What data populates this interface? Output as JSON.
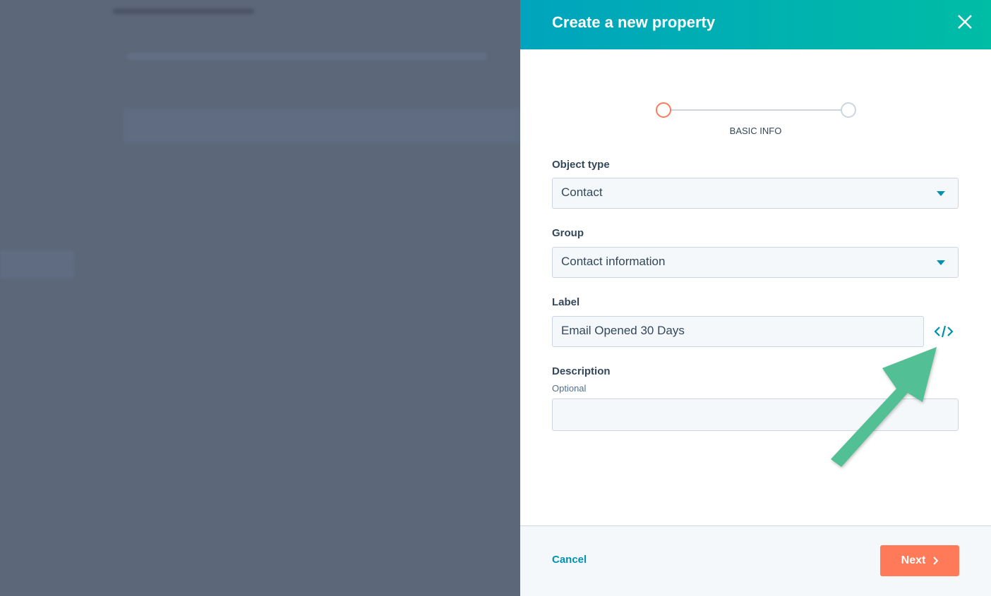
{
  "modal": {
    "title": "Create a new property",
    "step_label": "BASIC INFO",
    "fields": {
      "object_type": {
        "label": "Object type",
        "value": "Contact"
      },
      "group": {
        "label": "Group",
        "value": "Contact information"
      },
      "label": {
        "label": "Label",
        "value": "Email Opened 30 Days"
      },
      "description": {
        "label": "Description",
        "hint": "Optional",
        "value": ""
      }
    },
    "footer": {
      "cancel": "Cancel",
      "next": "Next"
    }
  },
  "icons": {
    "close": "close-icon",
    "code": "code-icon",
    "caret": "chevron-down-icon",
    "next": "chevron-right-icon",
    "annotation": "arrow-annotation"
  },
  "colors": {
    "header_start": "#00a4bd",
    "header_end": "#00bda5",
    "accent": "#0091ae",
    "primary_button": "#ff7a59",
    "active_step": "#ff7a59",
    "annotation_arrow": "#52bf95"
  }
}
